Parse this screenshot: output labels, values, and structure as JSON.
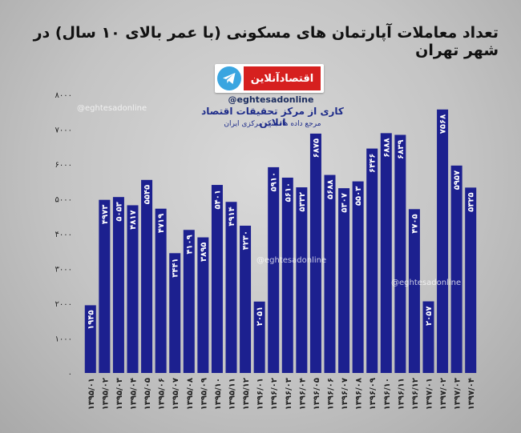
{
  "title": "تعداد معاملات آپارتمان های مسکونی (با عمر بالای ۱۰ سال) در شهر تهران",
  "brand": {
    "name": "اقتصادآنلاین",
    "handle": "@eghtesadonline",
    "icon": "telegram-icon"
  },
  "credit": {
    "line1": "کاری از مرکز تحقیقات اقتصاد انلاین",
    "line2": "مرجع داده ها: بانک مرکزی ایران"
  },
  "watermarks": [
    "@eghtesadonline",
    "@eghtesadonline",
    "@eghtesadonline"
  ],
  "colors": {
    "bar": "#1c208f",
    "value_label": "#ffffff"
  },
  "chart_data": {
    "type": "bar",
    "title": "تعداد معاملات آپارتمان های مسکونی (با عمر بالای ۱۰ سال) در شهر تهران",
    "xlabel": "",
    "ylabel": "",
    "ylim": [
      0,
      8000
    ],
    "yticks": [
      0,
      1000,
      2000,
      3000,
      4000,
      5000,
      6000,
      7000,
      8000
    ],
    "ytick_labels": [
      "۰",
      "۱۰۰۰",
      "۲۰۰۰",
      "۳۰۰۰",
      "۴۰۰۰",
      "۵۰۰۰",
      "۶۰۰۰",
      "۷۰۰۰",
      "۸۰۰۰"
    ],
    "categories": [
      "۱۳۹۵/۰۱",
      "۱۳۹۵/۰۲",
      "۱۳۹۵/۰۳",
      "۱۳۹۵/۰۴",
      "۱۳۹۵/۰۵",
      "۱۳۹۵/۰۶",
      "۱۳۹۵/۰۷",
      "۱۳۹۵/۰۸",
      "۱۳۹۵/۰۹",
      "۱۳۹۵/۱۰",
      "۱۳۹۵/۱۱",
      "۱۳۹۵/۱۲",
      "۱۳۹۶/۰۱",
      "۱۳۹۶/۰۲",
      "۱۳۹۶/۰۳",
      "۱۳۹۶/۰۴",
      "۱۳۹۶/۰۵",
      "۱۳۹۶/۰۶",
      "۱۳۹۶/۰۷",
      "۱۳۹۶/۰۸",
      "۱۳۹۶/۰۹",
      "۱۳۹۶/۱۰",
      "۱۳۹۶/۱۱",
      "۱۳۹۶/۱۲",
      "۱۳۹۷/۰۱",
      "۱۳۹۷/۰۲",
      "۱۳۹۷/۰۳",
      "۱۳۹۷/۰۴"
    ],
    "values": [
      1945,
      4973,
      5053,
      4817,
      5545,
      4719,
      3441,
      4109,
      3895,
      5401,
      4914,
      4230,
      2051,
      5910,
      5610,
      5332,
      6875,
      5688,
      5307,
      5503,
      6446,
      6888,
      6839,
      4705,
      2057,
      7568,
      5957,
      5325
    ],
    "value_labels": [
      "۱۹۴۵",
      "۴۹۷۳",
      "۵۰۵۳",
      "۴۸۱۷",
      "۵۵۴۵",
      "۴۷۱۹",
      "۳۴۴۱",
      "۴۱۰۹",
      "۳۸۹۵",
      "۵۴۰۱",
      "۴۹۱۴",
      "۴۲۳۰",
      "۲۰۵۱",
      "۵۹۱۰",
      "۵۶۱۰",
      "۵۳۳۲",
      "۶۸۷۵",
      "۵۶۸۸",
      "۵۳۰۷",
      "۵۵۰۳",
      "۶۴۴۶",
      "۶۸۸۸",
      "۶۸۳۹",
      "۴۷۰۵",
      "۲۰۵۷",
      "۷۵۶۸",
      "۵۹۵۷",
      "۵۳۲۵"
    ],
    "grid": false,
    "legend": "none"
  }
}
